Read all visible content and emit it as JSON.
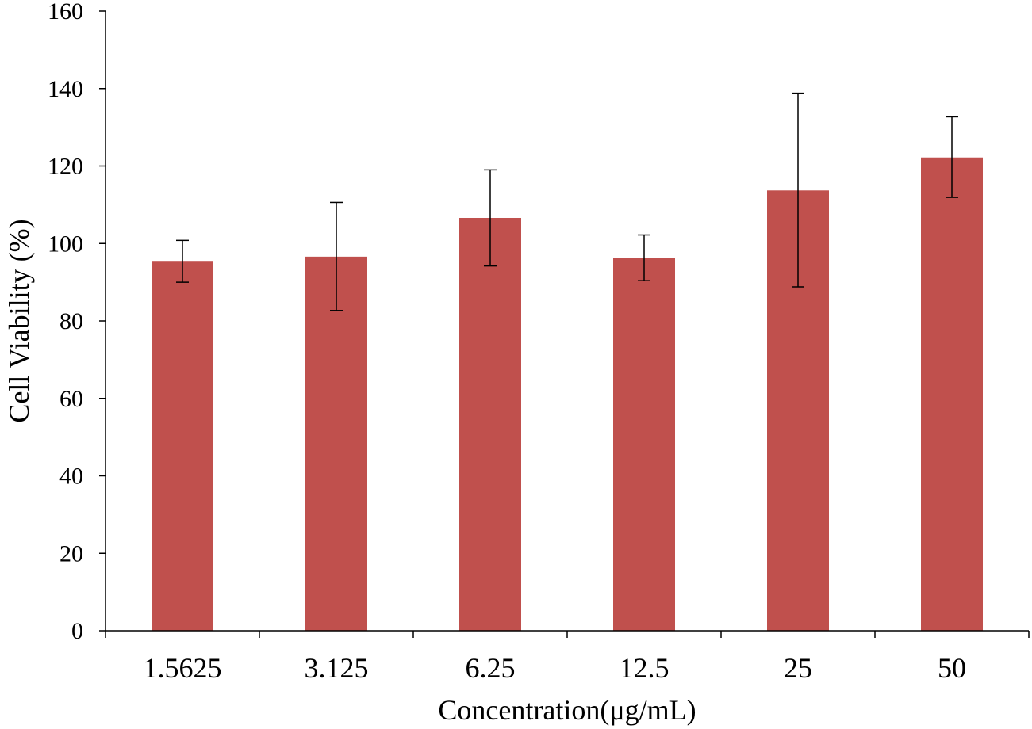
{
  "chart_data": {
    "type": "bar",
    "title": "",
    "xlabel": "Concentration(μg/mL)",
    "ylabel": "Cell Viability (%)",
    "categories": [
      "1.5625",
      "3.125",
      "6.25",
      "12.5",
      "25",
      "50"
    ],
    "series": [
      {
        "values": [
          95.3,
          96.6,
          106.6,
          96.3,
          113.7,
          122.2
        ],
        "error_low": [
          90.0,
          82.7,
          94.2,
          90.4,
          88.8,
          111.9
        ],
        "error_high": [
          100.8,
          110.6,
          119.0,
          102.2,
          138.8,
          132.7
        ],
        "color": "#c0504d"
      }
    ],
    "ylim": [
      0,
      160
    ],
    "yticks": [
      0,
      20,
      40,
      60,
      80,
      100,
      120,
      140,
      160
    ],
    "grid": false,
    "legend": "none"
  }
}
